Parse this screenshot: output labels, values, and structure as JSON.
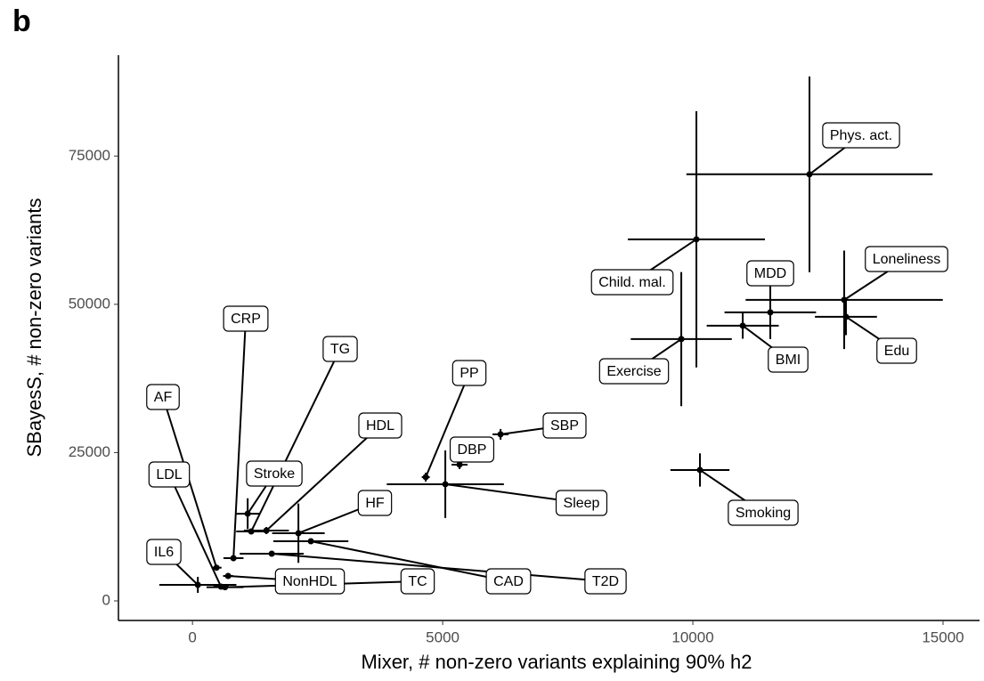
{
  "panel_label": "b",
  "chart_data": {
    "type": "scatter",
    "x_label": "Mixer, # non-zero variants explaining 90% h2",
    "y_label": "SBayesS, # non-zero variants",
    "xlim": [
      -1480,
      15730
    ],
    "ylim": [
      -3300,
      92000
    ],
    "xticks": [
      0,
      5000,
      10000,
      15000
    ],
    "yticks": [
      0,
      25000,
      50000,
      75000
    ],
    "color": "#000000",
    "labels": [
      "Phys. act.",
      "Child. mal.",
      "Exercise",
      "MDD",
      "BMI",
      "Loneliness",
      "Edu",
      "Smoking",
      "Sleep",
      "PP",
      "DBP",
      "SBP",
      "CRP",
      "Stroke",
      "TG",
      "HDL",
      "HF",
      "AF",
      "LDL",
      "IL6",
      "NonHDL",
      "TC",
      "CAD",
      "T2D"
    ],
    "x": [
      12331,
      10071,
      9769,
      11548,
      10997,
      13025,
      13060,
      10142,
      5053,
      4662,
      5338,
      6157,
      819,
      1103,
      1174,
      1477,
      2117,
      480,
      570,
      107,
      712,
      650,
      2366,
      1584
    ],
    "y": [
      71920,
      60960,
      44140,
      48650,
      46400,
      50750,
      47900,
      22070,
      19670,
      20870,
      22970,
      28080,
      7200,
      14700,
      11710,
      11860,
      11410,
      5600,
      2400,
      2700,
      4200,
      2300,
      10060,
      7960
    ],
    "xerr": [
      2460,
      1370,
      1010,
      915,
      720,
      1970,
      620,
      590,
      1170,
      80,
      160,
      160,
      200,
      230,
      300,
      450,
      525,
      100,
      150,
      770,
      100,
      370,
      750,
      640
    ],
    "yerr": [
      16500,
      21600,
      11300,
      4500,
      2200,
      8300,
      3100,
      2800,
      5700,
      750,
      750,
      900,
      500,
      2600,
      400,
      600,
      5000,
      300,
      300,
      1350,
      300,
      400,
      300,
      400
    ]
  }
}
